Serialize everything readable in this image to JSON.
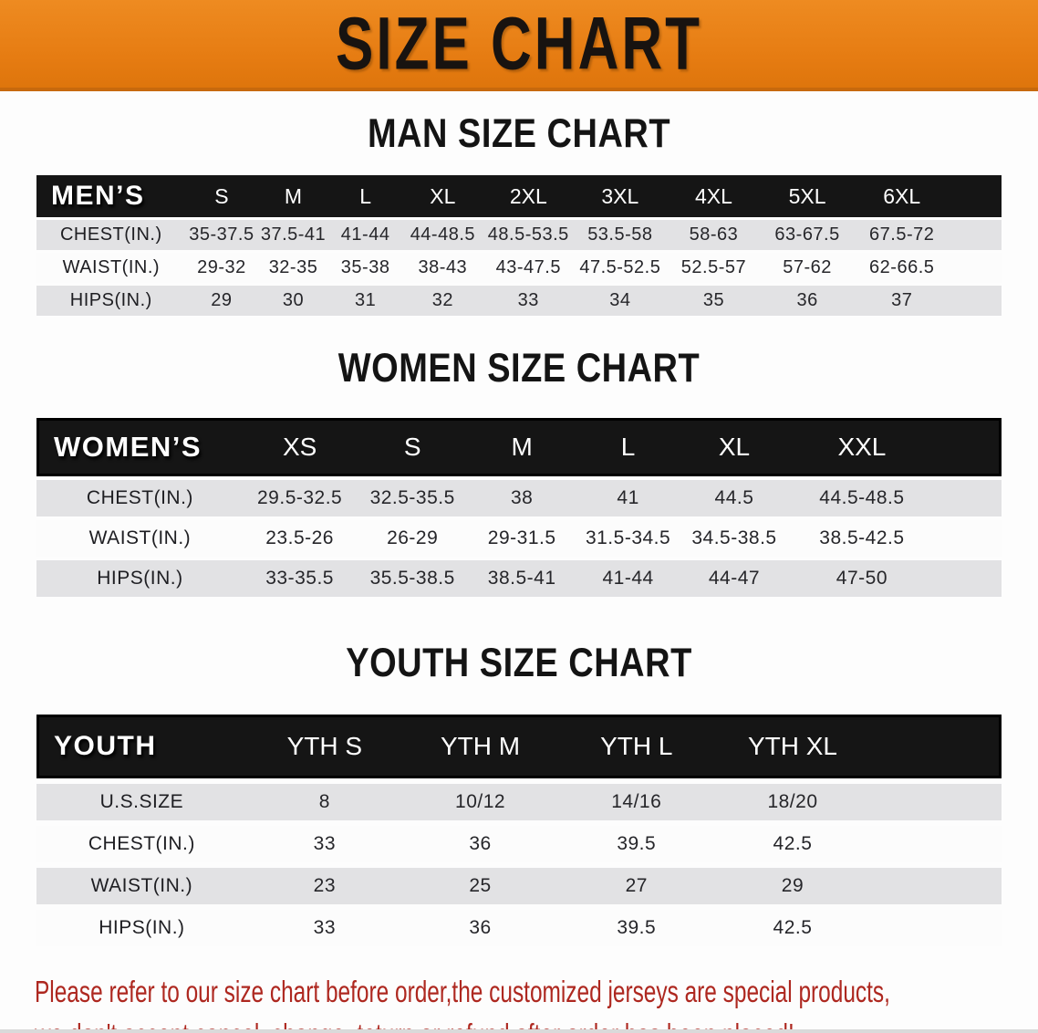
{
  "banner": {
    "title": "SIZE CHART"
  },
  "colors": {
    "banner_orange": "#E67E16",
    "header_bar_black": "#151515",
    "row_stripe_gray": "#E2E2E4",
    "notice_red": "#AE2820"
  },
  "men": {
    "heading": "MAN SIZE CHART",
    "table": {
      "label": "MEN’S",
      "sizes": [
        "S",
        "M",
        "L",
        "XL",
        "2XL",
        "3XL",
        "4XL",
        "5XL",
        "6XL"
      ],
      "rows": [
        {
          "label": "CHEST(IN.)",
          "values": [
            "35-37.5",
            "37.5-41",
            "41-44",
            "44-48.5",
            "48.5-53.5",
            "53.5-58",
            "58-63",
            "63-67.5",
            "67.5-72"
          ]
        },
        {
          "label": "WAIST(IN.)",
          "values": [
            "29-32",
            "32-35",
            "35-38",
            "38-43",
            "43-47.5",
            "47.5-52.5",
            "52.5-57",
            "57-62",
            "62-66.5"
          ]
        },
        {
          "label": "HIPS(IN.)",
          "values": [
            "29",
            "30",
            "31",
            "32",
            "33",
            "34",
            "35",
            "36",
            "37"
          ]
        }
      ]
    }
  },
  "women": {
    "heading": "WOMEN SIZE CHART",
    "table": {
      "label": "WOMEN’S",
      "sizes": [
        "XS",
        "S",
        "M",
        "L",
        "XL",
        "XXL"
      ],
      "rows": [
        {
          "label": "CHEST(IN.)",
          "values": [
            "29.5-32.5",
            "32.5-35.5",
            "38",
            "41",
            "44.5",
            "44.5-48.5"
          ]
        },
        {
          "label": "WAIST(IN.)",
          "values": [
            "23.5-26",
            "26-29",
            "29-31.5",
            "31.5-34.5",
            "34.5-38.5",
            "38.5-42.5"
          ]
        },
        {
          "label": "HIPS(IN.)",
          "values": [
            "33-35.5",
            "35.5-38.5",
            "38.5-41",
            "41-44",
            "44-47",
            "47-50"
          ]
        }
      ]
    }
  },
  "youth": {
    "heading": "YOUTH SIZE CHART",
    "table": {
      "label": "YOUTH",
      "sizes": [
        "YTH S",
        "YTH M",
        "YTH L",
        "YTH XL"
      ],
      "rows": [
        {
          "label": "U.S.SIZE",
          "values": [
            "8",
            "10/12",
            "14/16",
            "18/20"
          ]
        },
        {
          "label": "CHEST(IN.)",
          "values": [
            "33",
            "36",
            "39.5",
            "42.5"
          ]
        },
        {
          "label": "WAIST(IN.)",
          "values": [
            "23",
            "25",
            "27",
            "29"
          ]
        },
        {
          "label": "HIPS(IN.)",
          "values": [
            "33",
            "36",
            "39.5",
            "42.5"
          ]
        }
      ]
    }
  },
  "notice": {
    "line1": "Please refer to our size chart before order,the customized jerseys are special products,",
    "line2": "we don't accept cancel, change, teturn or refund after order has been placed!"
  }
}
